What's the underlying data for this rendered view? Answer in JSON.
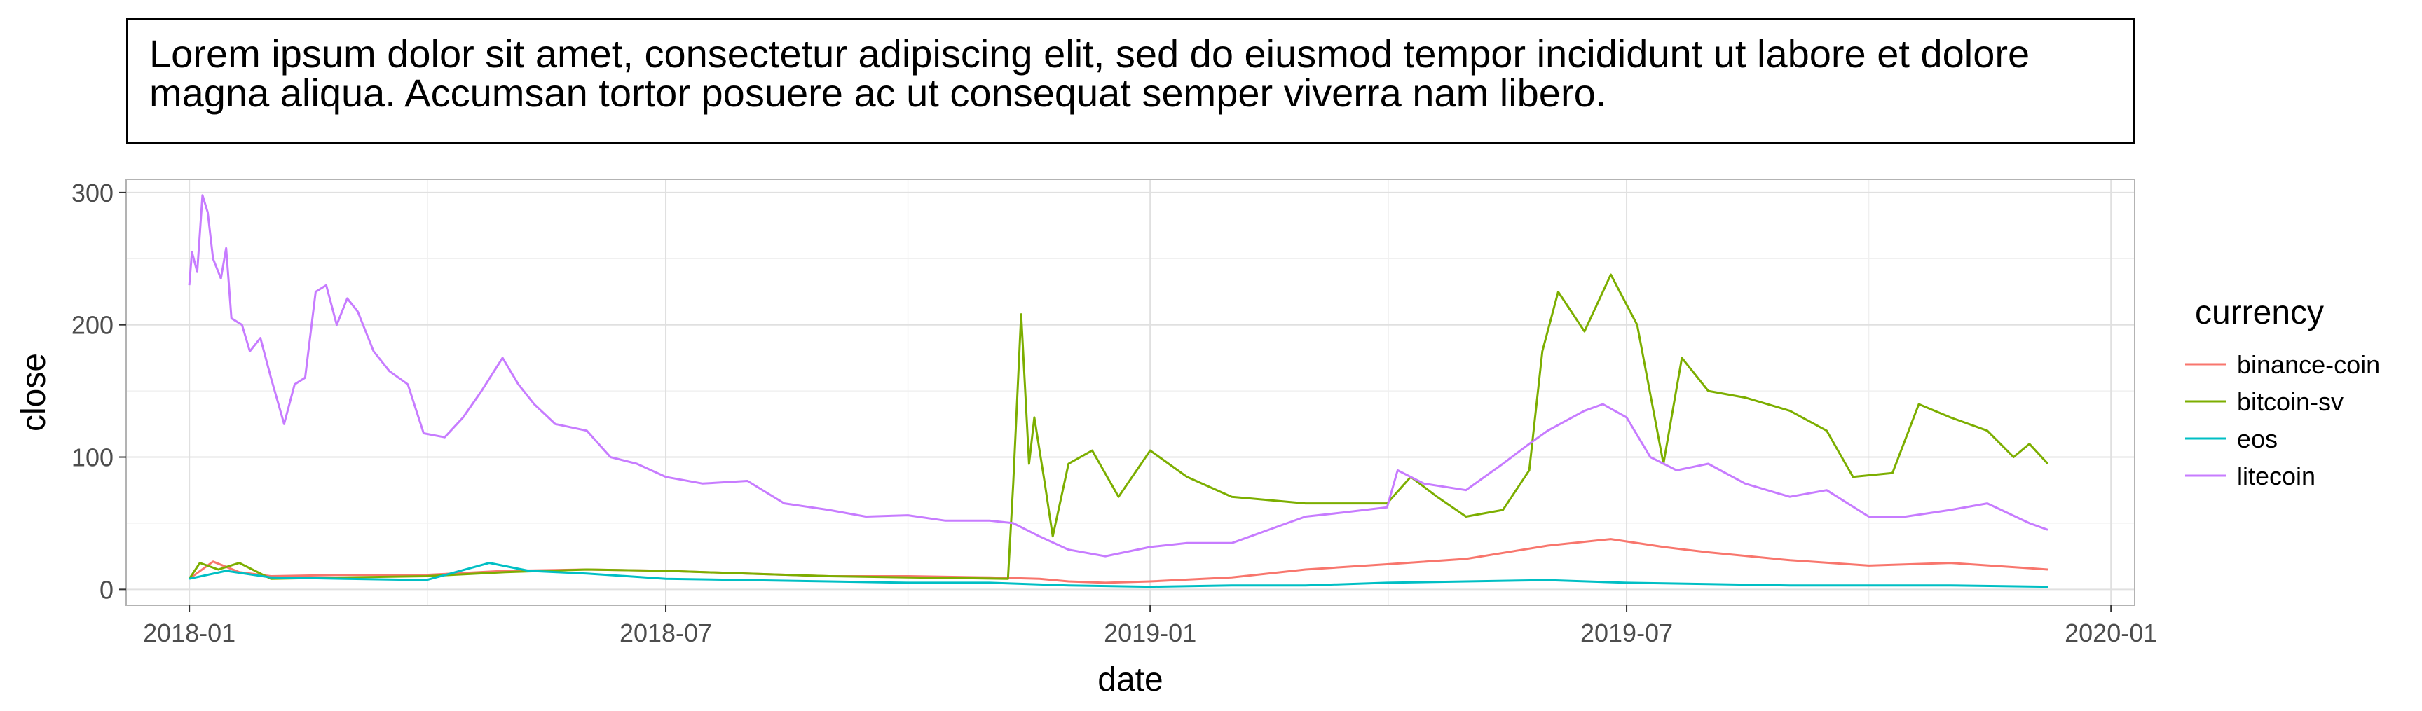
{
  "title": "Lorem ipsum dolor sit amet, consectetur adipiscing elit, sed do eiusmod tempor incididunt ut labore et dolore magna aliqua. Accumsan tortor posuere ac ut consequat semper viverra nam libero.",
  "chart_data": {
    "type": "line",
    "xlabel": "date",
    "ylabel": "close",
    "xlim": [
      "2017-12-08",
      "2020-01-10"
    ],
    "ylim": [
      -12,
      310
    ],
    "x_ticks": [
      "2018-01",
      "2018-07",
      "2019-01",
      "2019-07",
      "2020-01"
    ],
    "y_ticks": [
      0,
      100,
      200,
      300
    ],
    "grid": true,
    "legend": {
      "title": "currency",
      "position": "right"
    },
    "series": [
      {
        "name": "binance-coin",
        "color": "#F8766D",
        "points": [
          [
            "2018-01-01",
            8
          ],
          [
            "2018-01-10",
            21
          ],
          [
            "2018-01-20",
            13
          ],
          [
            "2018-02-01",
            10
          ],
          [
            "2018-03-01",
            11
          ],
          [
            "2018-04-01",
            11
          ],
          [
            "2018-05-01",
            14
          ],
          [
            "2018-06-01",
            15
          ],
          [
            "2018-07-01",
            14
          ],
          [
            "2018-08-01",
            12
          ],
          [
            "2018-09-01",
            10
          ],
          [
            "2018-10-01",
            10
          ],
          [
            "2018-11-01",
            9
          ],
          [
            "2018-11-20",
            8
          ],
          [
            "2018-12-01",
            6
          ],
          [
            "2018-12-15",
            5
          ],
          [
            "2019-01-01",
            6
          ],
          [
            "2019-02-01",
            9
          ],
          [
            "2019-03-01",
            15
          ],
          [
            "2019-04-01",
            19
          ],
          [
            "2019-05-01",
            23
          ],
          [
            "2019-06-01",
            33
          ],
          [
            "2019-06-25",
            38
          ],
          [
            "2019-07-15",
            32
          ],
          [
            "2019-08-01",
            28
          ],
          [
            "2019-09-01",
            22
          ],
          [
            "2019-10-01",
            18
          ],
          [
            "2019-11-01",
            20
          ],
          [
            "2019-12-01",
            16
          ],
          [
            "2019-12-08",
            15
          ]
        ]
      },
      {
        "name": "bitcoin-sv",
        "color": "#7CAE00",
        "points": [
          [
            "2018-01-01",
            8
          ],
          [
            "2018-01-05",
            20
          ],
          [
            "2018-01-12",
            15
          ],
          [
            "2018-01-20",
            20
          ],
          [
            "2018-02-01",
            8
          ],
          [
            "2018-03-01",
            9
          ],
          [
            "2018-04-01",
            10
          ],
          [
            "2018-05-01",
            13
          ],
          [
            "2018-06-01",
            15
          ],
          [
            "2018-07-01",
            14
          ],
          [
            "2018-08-01",
            12
          ],
          [
            "2018-09-01",
            10
          ],
          [
            "2018-10-01",
            9
          ],
          [
            "2018-11-08",
            8
          ],
          [
            "2018-11-10",
            80
          ],
          [
            "2018-11-13",
            208
          ],
          [
            "2018-11-16",
            95
          ],
          [
            "2018-11-18",
            130
          ],
          [
            "2018-11-22",
            80
          ],
          [
            "2018-11-25",
            40
          ],
          [
            "2018-12-01",
            95
          ],
          [
            "2018-12-10",
            105
          ],
          [
            "2018-12-20",
            70
          ],
          [
            "2019-01-01",
            105
          ],
          [
            "2019-01-15",
            85
          ],
          [
            "2019-02-01",
            70
          ],
          [
            "2019-03-01",
            65
          ],
          [
            "2019-04-01",
            65
          ],
          [
            "2019-04-10",
            85
          ],
          [
            "2019-04-20",
            70
          ],
          [
            "2019-05-01",
            55
          ],
          [
            "2019-05-15",
            60
          ],
          [
            "2019-05-25",
            90
          ],
          [
            "2019-05-30",
            180
          ],
          [
            "2019-06-05",
            225
          ],
          [
            "2019-06-15",
            195
          ],
          [
            "2019-06-25",
            238
          ],
          [
            "2019-07-05",
            200
          ],
          [
            "2019-07-15",
            95
          ],
          [
            "2019-07-22",
            175
          ],
          [
            "2019-08-01",
            150
          ],
          [
            "2019-08-15",
            145
          ],
          [
            "2019-09-01",
            135
          ],
          [
            "2019-09-15",
            120
          ],
          [
            "2019-09-25",
            85
          ],
          [
            "2019-10-10",
            88
          ],
          [
            "2019-10-20",
            140
          ],
          [
            "2019-11-01",
            130
          ],
          [
            "2019-11-15",
            120
          ],
          [
            "2019-11-25",
            100
          ],
          [
            "2019-12-01",
            110
          ],
          [
            "2019-12-08",
            95
          ]
        ]
      },
      {
        "name": "eos",
        "color": "#00BFC4",
        "points": [
          [
            "2018-01-01",
            8
          ],
          [
            "2018-01-15",
            14
          ],
          [
            "2018-02-01",
            9
          ],
          [
            "2018-03-01",
            8
          ],
          [
            "2018-04-01",
            7
          ],
          [
            "2018-04-25",
            20
          ],
          [
            "2018-05-10",
            14
          ],
          [
            "2018-06-01",
            12
          ],
          [
            "2018-07-01",
            8
          ],
          [
            "2018-08-01",
            7
          ],
          [
            "2018-09-01",
            6
          ],
          [
            "2018-10-01",
            5
          ],
          [
            "2018-11-01",
            5
          ],
          [
            "2018-12-01",
            3
          ],
          [
            "2019-01-01",
            2
          ],
          [
            "2019-02-01",
            3
          ],
          [
            "2019-03-01",
            3
          ],
          [
            "2019-04-01",
            5
          ],
          [
            "2019-05-01",
            6
          ],
          [
            "2019-06-01",
            7
          ],
          [
            "2019-07-01",
            5
          ],
          [
            "2019-08-01",
            4
          ],
          [
            "2019-09-01",
            3
          ],
          [
            "2019-10-01",
            3
          ],
          [
            "2019-11-01",
            3
          ],
          [
            "2019-12-08",
            2
          ]
        ]
      },
      {
        "name": "litecoin",
        "color": "#C77CFF",
        "points": [
          [
            "2018-01-01",
            230
          ],
          [
            "2018-01-02",
            255
          ],
          [
            "2018-01-04",
            240
          ],
          [
            "2018-01-06",
            298
          ],
          [
            "2018-01-08",
            285
          ],
          [
            "2018-01-10",
            250
          ],
          [
            "2018-01-13",
            235
          ],
          [
            "2018-01-15",
            258
          ],
          [
            "2018-01-17",
            205
          ],
          [
            "2018-01-21",
            200
          ],
          [
            "2018-01-24",
            180
          ],
          [
            "2018-01-28",
            190
          ],
          [
            "2018-02-01",
            160
          ],
          [
            "2018-02-06",
            125
          ],
          [
            "2018-02-10",
            155
          ],
          [
            "2018-02-14",
            160
          ],
          [
            "2018-02-18",
            225
          ],
          [
            "2018-02-22",
            230
          ],
          [
            "2018-02-26",
            200
          ],
          [
            "2018-03-02",
            220
          ],
          [
            "2018-03-06",
            210
          ],
          [
            "2018-03-12",
            180
          ],
          [
            "2018-03-18",
            165
          ],
          [
            "2018-03-25",
            155
          ],
          [
            "2018-03-31",
            118
          ],
          [
            "2018-04-08",
            115
          ],
          [
            "2018-04-15",
            130
          ],
          [
            "2018-04-22",
            150
          ],
          [
            "2018-04-30",
            175
          ],
          [
            "2018-05-06",
            155
          ],
          [
            "2018-05-12",
            140
          ],
          [
            "2018-05-20",
            125
          ],
          [
            "2018-06-01",
            120
          ],
          [
            "2018-06-10",
            100
          ],
          [
            "2018-06-20",
            95
          ],
          [
            "2018-07-01",
            85
          ],
          [
            "2018-07-15",
            80
          ],
          [
            "2018-08-01",
            82
          ],
          [
            "2018-08-15",
            65
          ],
          [
            "2018-09-01",
            60
          ],
          [
            "2018-09-15",
            55
          ],
          [
            "2018-10-01",
            56
          ],
          [
            "2018-10-15",
            52
          ],
          [
            "2018-11-01",
            52
          ],
          [
            "2018-11-10",
            50
          ],
          [
            "2018-11-20",
            40
          ],
          [
            "2018-12-01",
            30
          ],
          [
            "2018-12-15",
            25
          ],
          [
            "2019-01-01",
            32
          ],
          [
            "2019-01-15",
            35
          ],
          [
            "2019-02-01",
            35
          ],
          [
            "2019-02-15",
            45
          ],
          [
            "2019-03-01",
            55
          ],
          [
            "2019-03-15",
            58
          ],
          [
            "2019-04-01",
            62
          ],
          [
            "2019-04-05",
            90
          ],
          [
            "2019-04-15",
            80
          ],
          [
            "2019-05-01",
            75
          ],
          [
            "2019-05-15",
            95
          ],
          [
            "2019-05-25",
            110
          ],
          [
            "2019-06-01",
            120
          ],
          [
            "2019-06-15",
            135
          ],
          [
            "2019-06-22",
            140
          ],
          [
            "2019-07-01",
            130
          ],
          [
            "2019-07-10",
            100
          ],
          [
            "2019-07-20",
            90
          ],
          [
            "2019-08-01",
            95
          ],
          [
            "2019-08-15",
            80
          ],
          [
            "2019-09-01",
            70
          ],
          [
            "2019-09-15",
            75
          ],
          [
            "2019-10-01",
            55
          ],
          [
            "2019-10-15",
            55
          ],
          [
            "2019-11-01",
            60
          ],
          [
            "2019-11-15",
            65
          ],
          [
            "2019-12-01",
            50
          ],
          [
            "2019-12-08",
            45
          ]
        ]
      }
    ]
  }
}
